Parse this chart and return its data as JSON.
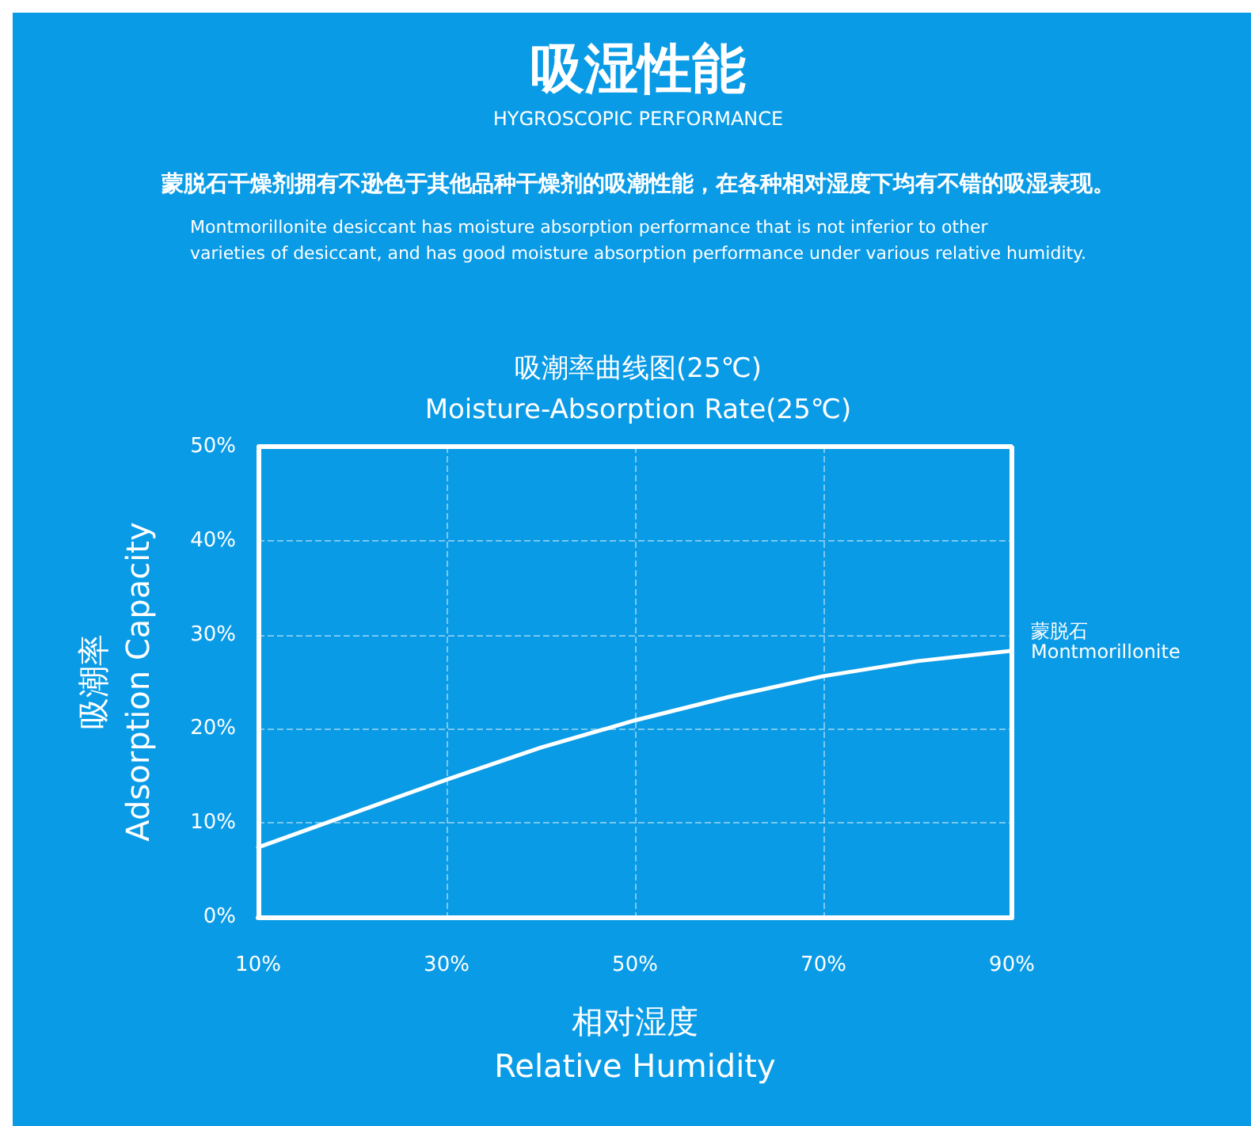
{
  "chart_data": {
    "type": "line",
    "title": "吸湿性能",
    "subtitle": "HYGROSCOPIC PERFORMANCE",
    "annotations": [
      "蒙脱石干燥剂拥有不逊色于其他品种干燥剂的吸潮性能，在各种相对湿度下均有不错的吸湿表现。",
      "Montmorillonite desiccant has moisture absorption performance that is not inferior to other\nvarieties of desiccant, and has good moisture absorption performance under various relative humidity.",
      "吸潮率曲线图(25℃)",
      "Moisture-Absorption Rate(25℃)"
    ],
    "xlabel": "相对湿度\nRelative Humidity",
    "ylabel": "吸潮率\nAdsorption Capacity",
    "x": [
      10,
      20,
      30,
      40,
      50,
      60,
      70,
      80,
      90
    ],
    "series": [
      {
        "name": "蒙脱石\nMontmorillonite",
        "color": "#ffffff",
        "values": [
          7.4,
          11,
          14.6,
          18,
          20.9,
          23.4,
          25.6,
          27.2,
          28.3
        ]
      }
    ],
    "xlim": [
      10,
      90
    ],
    "xticks": [
      {
        "value": 10,
        "label": "10%"
      },
      {
        "value": 30,
        "label": "30%"
      },
      {
        "value": 50,
        "label": "50%"
      },
      {
        "value": 70,
        "label": "70%"
      },
      {
        "value": 90,
        "label": "90%"
      }
    ],
    "ylim": [
      0,
      50
    ],
    "yticks": [
      {
        "value": 0,
        "label": "0%"
      },
      {
        "value": 10,
        "label": "10%"
      },
      {
        "value": 20,
        "label": "20%"
      },
      {
        "value": 30,
        "label": "30%"
      },
      {
        "value": 40,
        "label": "40%"
      },
      {
        "value": 50,
        "label": "50%"
      }
    ],
    "grid": true,
    "legend": false,
    "marker": "none",
    "line_style": "solid"
  }
}
